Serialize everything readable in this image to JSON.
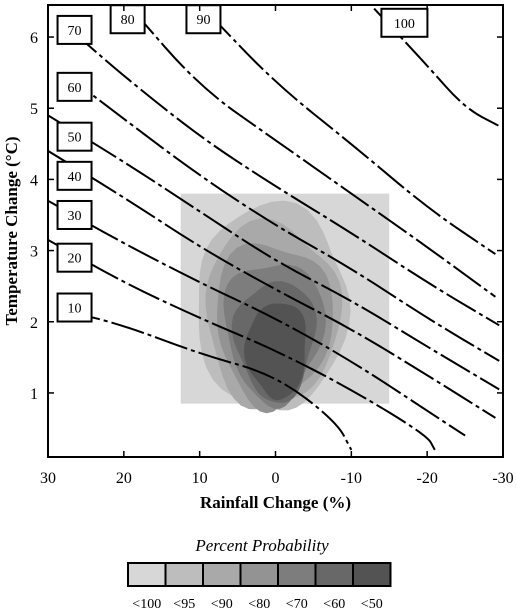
{
  "chart_data": {
    "type": "contour",
    "xlabel": "Rainfall Change (%)",
    "ylabel": "Temperature Change (°C)",
    "xlim": [
      30,
      -30
    ],
    "ylim": [
      0.1,
      6.45
    ],
    "xticks": [
      30,
      20,
      10,
      0,
      -10,
      -20,
      -30
    ],
    "yticks": [
      1,
      2,
      3,
      4,
      5,
      6
    ],
    "tick_labels_x": [
      "30",
      "20",
      "10",
      "0",
      "-10",
      "-20",
      "-30"
    ],
    "tick_labels_y": [
      "1",
      "2",
      "3",
      "4",
      "5",
      "6"
    ],
    "region": {
      "x": [
        12.5,
        -15
      ],
      "y": [
        0.85,
        3.8
      ]
    },
    "isolines": [
      {
        "level": "10",
        "points": [
          [
            27.5,
            2.15
          ],
          [
            20,
            1.95
          ],
          [
            10,
            1.55
          ],
          [
            0,
            1.25
          ],
          [
            -8,
            0.6
          ],
          [
            -10,
            0.2
          ]
        ]
      },
      {
        "level": "20",
        "points": [
          [
            30,
            3.15
          ],
          [
            20,
            2.55
          ],
          [
            10,
            2.05
          ],
          [
            0,
            1.6
          ],
          [
            -10,
            1.05
          ],
          [
            -20,
            0.4
          ],
          [
            -21,
            0.2
          ]
        ]
      },
      {
        "level": "30",
        "points": [
          [
            30,
            3.7
          ],
          [
            20,
            3.1
          ],
          [
            10,
            2.55
          ],
          [
            0,
            2.05
          ],
          [
            -10,
            1.45
          ],
          [
            -20,
            0.75
          ],
          [
            -25,
            0.4
          ]
        ]
      },
      {
        "level": "40",
        "points": [
          [
            30,
            4.4
          ],
          [
            20,
            3.75
          ],
          [
            10,
            3.05
          ],
          [
            0,
            2.45
          ],
          [
            -10,
            1.9
          ],
          [
            -20,
            1.25
          ],
          [
            -29,
            0.65
          ]
        ]
      },
      {
        "level": "50",
        "points": [
          [
            30,
            4.9
          ],
          [
            20,
            4.25
          ],
          [
            10,
            3.55
          ],
          [
            0,
            2.85
          ],
          [
            -10,
            2.3
          ],
          [
            -20,
            1.65
          ],
          [
            -29.5,
            1.05
          ]
        ]
      },
      {
        "level": "60",
        "points": [
          [
            28,
            5.5
          ],
          [
            20,
            4.85
          ],
          [
            10,
            4.05
          ],
          [
            0,
            3.35
          ],
          [
            -10,
            2.75
          ],
          [
            -20,
            2.05
          ],
          [
            -29.5,
            1.45
          ]
        ]
      },
      {
        "level": "70",
        "points": [
          [
            27,
            6.1
          ],
          [
            20,
            5.45
          ],
          [
            10,
            4.6
          ],
          [
            0,
            3.9
          ],
          [
            -10,
            3.25
          ],
          [
            -20,
            2.55
          ],
          [
            -29.5,
            1.95
          ]
        ]
      },
      {
        "level": "80",
        "points": [
          [
            19,
            6.4
          ],
          [
            10,
            5.3
          ],
          [
            0,
            4.55
          ],
          [
            -10,
            3.8
          ],
          [
            -20,
            3.05
          ],
          [
            -29,
            2.35
          ]
        ]
      },
      {
        "level": "90",
        "points": [
          [
            9,
            6.35
          ],
          [
            0,
            5.35
          ],
          [
            -10,
            4.5
          ],
          [
            -20,
            3.6
          ],
          [
            -29,
            2.95
          ]
        ]
      },
      {
        "level": "100",
        "points": [
          [
            -13,
            6.4
          ],
          [
            -20,
            5.6
          ],
          [
            -25,
            5.0
          ],
          [
            -29.5,
            4.75
          ]
        ]
      }
    ],
    "contour_boxes": [
      {
        "level": "10",
        "x": 26.5,
        "y": 2.2
      },
      {
        "level": "20",
        "x": 26.5,
        "y": 2.9
      },
      {
        "level": "30",
        "x": 26.5,
        "y": 3.5
      },
      {
        "level": "40",
        "x": 26.5,
        "y": 4.05
      },
      {
        "level": "50",
        "x": 26.5,
        "y": 4.6
      },
      {
        "level": "60",
        "x": 26.5,
        "y": 5.3
      },
      {
        "level": "70",
        "x": 26.5,
        "y": 6.1
      },
      {
        "level": "80",
        "x": 19.5,
        "y": 6.25
      },
      {
        "level": "90",
        "x": 9.5,
        "y": 6.25
      },
      {
        "level": "100",
        "x": -17,
        "y": 6.2
      }
    ],
    "probability_contours": [
      {
        "label": "<95",
        "color": "#bdbdbd",
        "cx": 0.5,
        "cy": 2.15,
        "rx": 10.0,
        "ry": 1.45
      },
      {
        "label": "<90",
        "color": "#a9a9a9",
        "cx": 0.5,
        "cy": 2.05,
        "rx": 8.8,
        "ry": 1.3
      },
      {
        "label": "<80",
        "color": "#939393",
        "cx": 0.3,
        "cy": 1.95,
        "rx": 7.6,
        "ry": 1.15
      },
      {
        "label": "<70",
        "color": "#7d7d7d",
        "cx": 0.2,
        "cy": 1.85,
        "rx": 6.4,
        "ry": 1.0
      },
      {
        "label": "<60",
        "color": "#686868",
        "cx": 0.0,
        "cy": 1.72,
        "rx": 5.2,
        "ry": 0.85
      },
      {
        "label": "<50",
        "color": "#535353",
        "cx": -0.2,
        "cy": 1.58,
        "rx": 4.0,
        "ry": 0.68
      }
    ],
    "legend": {
      "title": "Percent Probability",
      "items": [
        {
          "label": "<100",
          "color": "#d7d7d7"
        },
        {
          "label": "<95",
          "color": "#bdbdbd"
        },
        {
          "label": "<90",
          "color": "#a9a9a9"
        },
        {
          "label": "<80",
          "color": "#939393"
        },
        {
          "label": "<70",
          "color": "#7d7d7d"
        },
        {
          "label": "<60",
          "color": "#686868"
        },
        {
          "label": "<50",
          "color": "#535353"
        }
      ]
    }
  }
}
